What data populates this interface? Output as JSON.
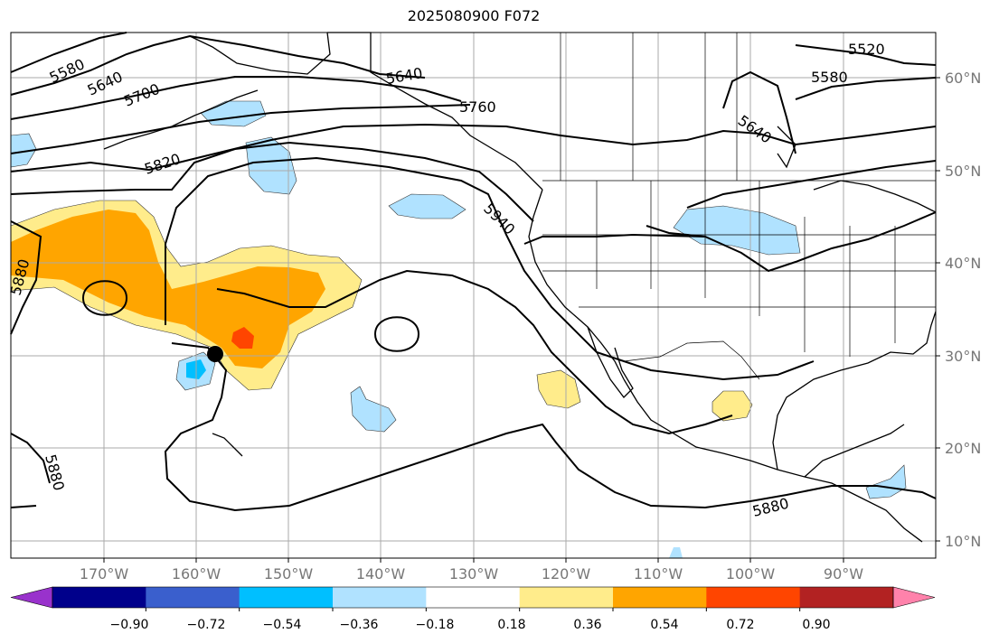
{
  "title": "2025080900 F072",
  "lat_labels": [
    "60°N",
    "50°N",
    "40°N",
    "30°N",
    "20°N",
    "10°N"
  ],
  "lon_labels": [
    "170°W",
    "160°W",
    "150°W",
    "140°W",
    "130°W",
    "120°W",
    "110°W",
    "100°W",
    "90°W"
  ],
  "contour_labels": [
    "5520",
    "5580",
    "5580",
    "5640",
    "5640",
    "5640",
    "5700",
    "5760",
    "5820",
    "5880",
    "5880",
    "5880",
    "5940"
  ],
  "colorbar": {
    "colors": [
      "#9932cc",
      "#00008b",
      "#3a5fcd",
      "#00bfff",
      "#b0e2ff",
      "#ffffff",
      "#ffec8b",
      "#ffa500",
      "#ff4500",
      "#b22222",
      "#ff82ab"
    ],
    "tick_labels": [
      "−0.90",
      "−0.72",
      "−0.54",
      "−0.36",
      "−0.18",
      "0.18",
      "0.36",
      "0.54",
      "0.72",
      "0.90"
    ]
  },
  "shading": {
    "positive_colors": [
      "#ffec8b",
      "#ffa500",
      "#ff4500"
    ],
    "negative_colors": [
      "#b0e2ff",
      "#00bfff"
    ]
  },
  "marker": "black-dot"
}
